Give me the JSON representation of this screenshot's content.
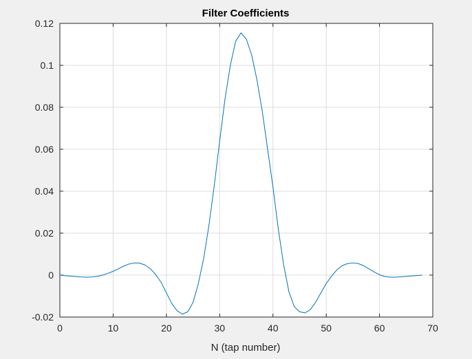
{
  "chart_data": {
    "type": "line",
    "title": "Filter Coefficients",
    "xlabel": "N (tap number)",
    "ylabel": "",
    "xlim": [
      0,
      70
    ],
    "ylim": [
      -0.02,
      0.12
    ],
    "x_ticks": [
      0,
      10,
      20,
      30,
      40,
      50,
      60,
      70
    ],
    "y_ticks": [
      -0.02,
      0,
      0.02,
      0.04,
      0.06,
      0.08,
      0.1,
      0.12
    ],
    "x_tick_labels": [
      "0",
      "10",
      "20",
      "30",
      "40",
      "50",
      "60",
      "70"
    ],
    "y_tick_labels": [
      "-0.02",
      "0",
      "0.02",
      "0.04",
      "0.06",
      "0.08",
      "0.1",
      "0.12"
    ],
    "grid": true,
    "legend": "none",
    "series": [
      {
        "color": "#0072bd",
        "x": [
          0,
          1,
          2,
          3,
          4,
          5,
          6,
          7,
          8,
          9,
          10,
          11,
          12,
          13,
          14,
          15,
          16,
          17,
          18,
          19,
          20,
          21,
          22,
          23,
          24,
          25,
          26,
          27,
          28,
          29,
          30,
          31,
          32,
          33,
          34,
          35,
          36,
          37,
          38,
          39,
          40,
          41,
          42,
          43,
          44,
          45,
          46,
          47,
          48,
          49,
          50,
          51,
          52,
          53,
          54,
          55,
          56,
          57,
          58,
          59,
          60,
          61,
          62,
          63,
          64,
          65,
          66,
          67,
          68
        ],
        "y": [
          0.0,
          -0.0003,
          -0.0005,
          -0.0007,
          -0.0009,
          -0.001,
          -0.0009,
          -0.0006,
          0.0,
          0.0008,
          0.0018,
          0.003,
          0.0043,
          0.0053,
          0.0058,
          0.0057,
          0.0048,
          0.003,
          0.0002,
          -0.0034,
          -0.0085,
          -0.0135,
          -0.017,
          -0.0186,
          -0.0175,
          -0.013,
          -0.004,
          0.008,
          0.024,
          0.043,
          0.064,
          0.084,
          0.1,
          0.1115,
          0.1155,
          0.1125,
          0.105,
          0.093,
          0.078,
          0.06,
          0.042,
          0.022,
          0.005,
          -0.008,
          -0.015,
          -0.0175,
          -0.018,
          -0.0165,
          -0.013,
          -0.0085,
          -0.004,
          -0.0005,
          0.0025,
          0.0045,
          0.0055,
          0.0058,
          0.0055,
          0.0045,
          0.003,
          0.0015,
          0.0002,
          -0.0007,
          -0.001,
          -0.001,
          -0.0008,
          -0.0006,
          -0.0004,
          -0.0002,
          0.0
        ]
      }
    ]
  }
}
